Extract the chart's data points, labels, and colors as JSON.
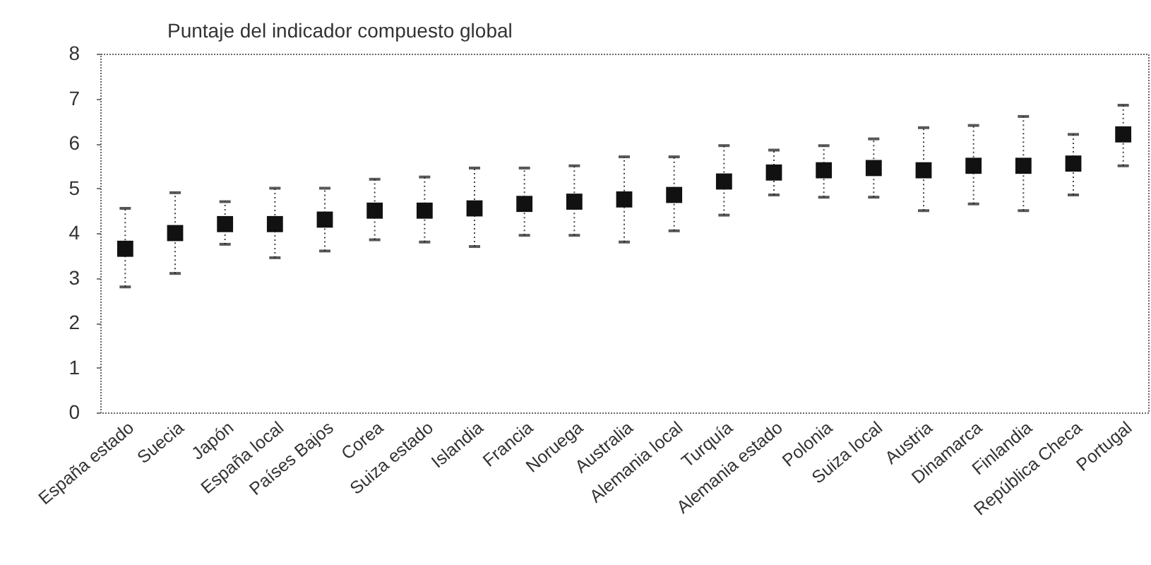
{
  "chart_data": {
    "type": "scatter",
    "ylabel": "Puntaje del indicador compuesto global",
    "categories": [
      "España  estado",
      "Suecia",
      "Japón",
      "España local",
      "Países Bajos",
      "Corea",
      "Suiza estado",
      "Islandia",
      "Francia",
      "Noruega",
      "Australia",
      "Alemania local",
      "Turquía",
      "Alemania estado",
      "Polonia",
      "Suiza local",
      "Austria",
      "Dinamarca",
      "Finlandia",
      "República Checa",
      "Portugal"
    ],
    "series": [
      {
        "color": "#111111",
        "values": [
          3.65,
          4.0,
          4.2,
          4.2,
          4.3,
          4.5,
          4.5,
          4.55,
          4.65,
          4.7,
          4.75,
          4.85,
          5.15,
          5.35,
          5.4,
          5.45,
          5.4,
          5.5,
          5.5,
          5.55,
          6.2
        ],
        "errors": [
          [
            2.8,
            4.55
          ],
          [
            3.1,
            4.9
          ],
          [
            3.75,
            4.7
          ],
          [
            3.45,
            5.0
          ],
          [
            3.6,
            5.0
          ],
          [
            3.85,
            5.2
          ],
          [
            3.8,
            5.25
          ],
          [
            3.7,
            5.45
          ],
          [
            3.95,
            5.45
          ],
          [
            3.95,
            5.5
          ],
          [
            3.8,
            5.7
          ],
          [
            4.05,
            5.7
          ],
          [
            4.4,
            5.95
          ],
          [
            4.85,
            5.85
          ],
          [
            4.8,
            5.95
          ],
          [
            4.8,
            6.1
          ],
          [
            4.5,
            6.35
          ],
          [
            4.65,
            6.4
          ],
          [
            4.5,
            6.6
          ],
          [
            4.85,
            6.2
          ],
          [
            5.5,
            6.85
          ]
        ]
      }
    ],
    "ylim": [
      0,
      8
    ],
    "yticks": [
      0,
      1,
      2,
      3,
      4,
      5,
      6,
      7,
      8
    ],
    "grid": false,
    "marker": "square"
  }
}
